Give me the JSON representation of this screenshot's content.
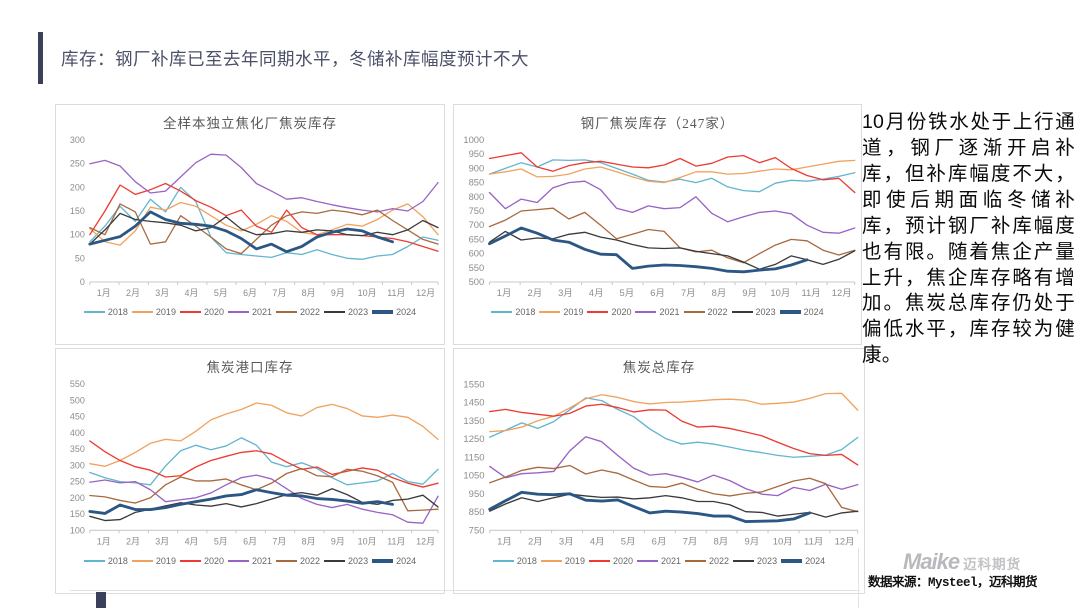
{
  "header": {
    "title": "库存：钢厂补库已至去年同期水平，冬储补库幅度预计不大"
  },
  "commentary": {
    "text": "10月份铁水处于上行通道，钢厂逐渐开启补库，但补库幅度不大，即使后期面临冬储补库，预计钢厂补库幅度也有限。随着焦企产量上升，焦企库存略有增加。焦炭总库存仍处于偏低水平，库存较为健康。"
  },
  "footer": {
    "logo_text": "Maike",
    "logo_suffix": "迈科期货",
    "source": "数据来源：Mysteel，迈科期货"
  },
  "months": [
    "1月",
    "2月",
    "3月",
    "4月",
    "5月",
    "6月",
    "7月",
    "8月",
    "9月",
    "10月",
    "11月",
    "12月"
  ],
  "series_colors": {
    "2018": "#62b5cf",
    "2019": "#f0a35e",
    "2020": "#ed3b31",
    "2021": "#9963c4",
    "2022": "#a9693f",
    "2023": "#3a3a3a",
    "2024": "#2c5784"
  },
  "chart_data": [
    {
      "type": "line",
      "title": "全样本独立焦化厂焦炭库存",
      "xlabel": "",
      "ylabel": "",
      "ylim": [
        0,
        300
      ],
      "ystep": 50,
      "grid": false,
      "legend_position": "bottom",
      "series": [
        {
          "name": "2018",
          "values": [
            85,
            118,
            160,
            128,
            175,
            148,
            200,
            170,
            95,
            62,
            58,
            55,
            52,
            62,
            58,
            68,
            58,
            50,
            48,
            55,
            58,
            75,
            95,
            88
          ]
        },
        {
          "name": "2019",
          "values": [
            113,
            85,
            78,
            108,
            158,
            152,
            168,
            160,
            140,
            120,
            108,
            122,
            140,
            128,
            105,
            100,
            110,
            122,
            118,
            132,
            152,
            165,
            138,
            100
          ]
        },
        {
          "name": "2020",
          "values": [
            100,
            150,
            205,
            185,
            195,
            208,
            192,
            172,
            158,
            140,
            152,
            118,
            105,
            152,
            115,
            100,
            100,
            100,
            98,
            95,
            92,
            85,
            75,
            65
          ]
        },
        {
          "name": "2021",
          "values": [
            250,
            257,
            245,
            212,
            188,
            192,
            222,
            252,
            270,
            268,
            242,
            208,
            192,
            175,
            178,
            170,
            163,
            157,
            152,
            148,
            155,
            150,
            170,
            210
          ]
        },
        {
          "name": "2022",
          "values": [
            115,
            100,
            165,
            148,
            80,
            85,
            140,
            118,
            95,
            70,
            60,
            90,
            120,
            140,
            148,
            145,
            152,
            148,
            142,
            152,
            130,
            110,
            90,
            80
          ]
        },
        {
          "name": "2023",
          "values": [
            80,
            110,
            145,
            132,
            128,
            125,
            120,
            108,
            115,
            138,
            112,
            100,
            102,
            108,
            105,
            110,
            108,
            100,
            98,
            105,
            100,
            110,
            130,
            115
          ]
        },
        {
          "name": "2024",
          "values": [
            80,
            88,
            96,
            118,
            148,
            132,
            124,
            122,
            118,
            108,
            92,
            70,
            80,
            64,
            75,
            95,
            105,
            112,
            108,
            95,
            85
          ]
        }
      ]
    },
    {
      "type": "line",
      "title": "钢厂焦炭库存（247家）",
      "xlabel": "",
      "ylabel": "",
      "ylim": [
        500,
        1000
      ],
      "ystep": 50,
      "grid": false,
      "legend_position": "bottom",
      "series": [
        {
          "name": "2018",
          "values": [
            880,
            900,
            920,
            905,
            930,
            928,
            930,
            920,
            900,
            880,
            858,
            852,
            862,
            850,
            865,
            835,
            822,
            818,
            848,
            858,
            855,
            862,
            872,
            885
          ]
        },
        {
          "name": "2019",
          "values": [
            880,
            888,
            898,
            870,
            872,
            880,
            898,
            905,
            888,
            870,
            855,
            850,
            868,
            888,
            888,
            880,
            882,
            890,
            898,
            895,
            905,
            915,
            925,
            928
          ]
        },
        {
          "name": "2020",
          "values": [
            935,
            945,
            955,
            905,
            890,
            910,
            920,
            925,
            915,
            905,
            902,
            912,
            935,
            908,
            918,
            940,
            945,
            920,
            938,
            900,
            875,
            860,
            865,
            815
          ]
        },
        {
          "name": "2021",
          "values": [
            815,
            758,
            792,
            780,
            832,
            850,
            855,
            825,
            760,
            745,
            768,
            758,
            762,
            800,
            742,
            712,
            730,
            745,
            750,
            740,
            700,
            675,
            672,
            690
          ]
        },
        {
          "name": "2022",
          "values": [
            695,
            718,
            750,
            755,
            760,
            722,
            745,
            700,
            652,
            668,
            685,
            678,
            620,
            606,
            612,
            585,
            568,
            600,
            630,
            650,
            645,
            612,
            595,
            612
          ]
        },
        {
          "name": "2023",
          "values": [
            640,
            678,
            648,
            655,
            652,
            668,
            675,
            658,
            648,
            632,
            620,
            618,
            620,
            608,
            600,
            592,
            570,
            545,
            562,
            592,
            578,
            562,
            580,
            610
          ]
        },
        {
          "name": "2024",
          "values": [
            635,
            662,
            690,
            672,
            648,
            640,
            615,
            598,
            596,
            548,
            556,
            560,
            558,
            554,
            548,
            538,
            536,
            542,
            546,
            560,
            578
          ]
        }
      ]
    },
    {
      "type": "line",
      "title": "焦炭港口库存",
      "xlabel": "",
      "ylabel": "",
      "ylim": [
        100,
        550
      ],
      "ystep": 50,
      "grid": false,
      "legend_position": "bottom",
      "series": [
        {
          "name": "2018",
          "values": [
            278,
            262,
            250,
            246,
            240,
            298,
            345,
            362,
            348,
            360,
            385,
            362,
            310,
            296,
            308,
            290,
            262,
            240,
            246,
            252,
            275,
            250,
            242,
            288
          ]
        },
        {
          "name": "2019",
          "values": [
            305,
            297,
            315,
            340,
            368,
            380,
            375,
            405,
            440,
            458,
            472,
            492,
            485,
            462,
            452,
            478,
            488,
            475,
            452,
            448,
            455,
            448,
            420,
            380
          ]
        },
        {
          "name": "2020",
          "values": [
            375,
            342,
            315,
            296,
            285,
            264,
            268,
            295,
            315,
            328,
            340,
            345,
            335,
            310,
            288,
            295,
            272,
            282,
            292,
            285,
            262,
            245,
            233,
            245
          ]
        },
        {
          "name": "2021",
          "values": [
            248,
            255,
            246,
            250,
            225,
            188,
            194,
            200,
            215,
            240,
            262,
            270,
            258,
            228,
            198,
            180,
            170,
            180,
            165,
            155,
            148,
            125,
            122,
            205
          ]
        },
        {
          "name": "2022",
          "values": [
            207,
            203,
            192,
            184,
            200,
            240,
            264,
            252,
            252,
            258,
            240,
            225,
            245,
            275,
            290,
            268,
            265,
            288,
            282,
            268,
            248,
            160,
            162,
            165
          ]
        },
        {
          "name": "2023",
          "values": [
            143,
            130,
            133,
            155,
            165,
            175,
            185,
            178,
            174,
            182,
            172,
            182,
            196,
            210,
            216,
            208,
            228,
            210,
            186,
            180,
            192,
            196,
            208,
            172
          ]
        },
        {
          "name": "2024",
          "values": [
            158,
            152,
            178,
            164,
            164,
            170,
            180,
            188,
            196,
            206,
            210,
            225,
            216,
            208,
            206,
            198,
            195,
            190,
            183,
            188,
            180
          ]
        }
      ]
    },
    {
      "type": "line",
      "title": "焦炭总库存",
      "xlabel": "",
      "ylabel": "",
      "ylim": [
        750,
        1550
      ],
      "ystep": 100,
      "grid": false,
      "legend_position": "bottom",
      "series": [
        {
          "name": "2018",
          "values": [
            1260,
            1298,
            1338,
            1308,
            1345,
            1410,
            1475,
            1460,
            1412,
            1372,
            1305,
            1252,
            1222,
            1232,
            1222,
            1205,
            1188,
            1175,
            1160,
            1150,
            1155,
            1162,
            1192,
            1258
          ]
        },
        {
          "name": "2019",
          "values": [
            1290,
            1296,
            1315,
            1350,
            1375,
            1420,
            1470,
            1492,
            1478,
            1455,
            1442,
            1450,
            1452,
            1458,
            1465,
            1468,
            1462,
            1440,
            1445,
            1452,
            1472,
            1498,
            1500,
            1408
          ]
        },
        {
          "name": "2020",
          "values": [
            1400,
            1412,
            1395,
            1385,
            1375,
            1390,
            1430,
            1440,
            1422,
            1398,
            1410,
            1408,
            1348,
            1315,
            1320,
            1308,
            1288,
            1268,
            1232,
            1198,
            1170,
            1160,
            1165,
            1108
          ]
        },
        {
          "name": "2021",
          "values": [
            1100,
            1038,
            1060,
            1065,
            1072,
            1185,
            1262,
            1235,
            1160,
            1090,
            1052,
            1060,
            1040,
            1015,
            1052,
            1022,
            978,
            948,
            940,
            985,
            968,
            1002,
            975,
            1000
          ]
        },
        {
          "name": "2022",
          "values": [
            1010,
            1042,
            1078,
            1095,
            1088,
            1105,
            1058,
            1080,
            1062,
            1025,
            990,
            985,
            1008,
            975,
            950,
            938,
            952,
            960,
            990,
            1020,
            1035,
            1005,
            875,
            852
          ]
        },
        {
          "name": "2023",
          "values": [
            855,
            895,
            928,
            908,
            928,
            948,
            938,
            930,
            932,
            922,
            928,
            940,
            928,
            908,
            908,
            890,
            852,
            848,
            828,
            838,
            848,
            822,
            845,
            855
          ]
        },
        {
          "name": "2024",
          "values": [
            865,
            912,
            958,
            948,
            945,
            950,
            915,
            910,
            916,
            880,
            845,
            855,
            850,
            842,
            828,
            828,
            798,
            800,
            802,
            812,
            845
          ]
        }
      ]
    }
  ]
}
